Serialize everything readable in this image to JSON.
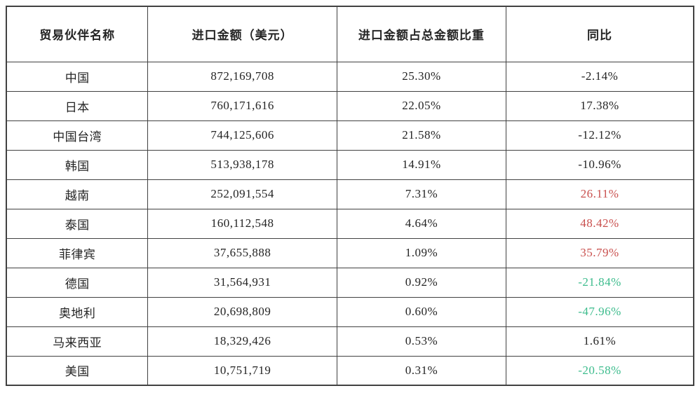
{
  "table": {
    "headers": [
      "贸易伙伴名称",
      "进口金额（美元）",
      "进口金额占总金额比重",
      "同比"
    ],
    "rows": [
      {
        "partner": "中国",
        "amount": "872,169,708",
        "share": "25.30%",
        "yoy": "-2.14%",
        "yoy_color": "default"
      },
      {
        "partner": "日本",
        "amount": "760,171,616",
        "share": "22.05%",
        "yoy": "17.38%",
        "yoy_color": "default"
      },
      {
        "partner": "中国台湾",
        "amount": "744,125,606",
        "share": "21.58%",
        "yoy": "-12.12%",
        "yoy_color": "default"
      },
      {
        "partner": "韩国",
        "amount": "513,938,178",
        "share": "14.91%",
        "yoy": "-10.96%",
        "yoy_color": "default"
      },
      {
        "partner": "越南",
        "amount": "252,091,554",
        "share": "7.31%",
        "yoy": "26.11%",
        "yoy_color": "red"
      },
      {
        "partner": "泰国",
        "amount": "160,112,548",
        "share": "4.64%",
        "yoy": "48.42%",
        "yoy_color": "red"
      },
      {
        "partner": "菲律宾",
        "amount": "37,655,888",
        "share": "1.09%",
        "yoy": "35.79%",
        "yoy_color": "red"
      },
      {
        "partner": "德国",
        "amount": "31,564,931",
        "share": "0.92%",
        "yoy": "-21.84%",
        "yoy_color": "green"
      },
      {
        "partner": "奥地利",
        "amount": "20,698,809",
        "share": "0.60%",
        "yoy": "-47.96%",
        "yoy_color": "green"
      },
      {
        "partner": "马来西亚",
        "amount": "18,329,426",
        "share": "0.53%",
        "yoy": "1.61%",
        "yoy_color": "default"
      },
      {
        "partner": "美国",
        "amount": "10,751,719",
        "share": "0.31%",
        "yoy": "-20.58%",
        "yoy_color": "green"
      }
    ]
  },
  "colors": {
    "default": "#242424",
    "red": "#c9504e",
    "green": "#3dbc8d",
    "border": "#414141"
  },
  "chart_data": {
    "type": "table",
    "title": "",
    "columns": [
      "贸易伙伴名称",
      "进口金额（美元）",
      "进口金额占总金额比重",
      "同比"
    ],
    "categories": [
      "中国",
      "日本",
      "中国台湾",
      "韩国",
      "越南",
      "泰国",
      "菲律宾",
      "德国",
      "奥地利",
      "马来西亚",
      "美国"
    ],
    "series": [
      {
        "name": "进口金额（美元）",
        "values": [
          872169708,
          760171616,
          744125606,
          513938178,
          252091554,
          160112548,
          37655888,
          31564931,
          20698809,
          18329426,
          10751719
        ]
      },
      {
        "name": "进口金额占总金额比重(%)",
        "values": [
          25.3,
          22.05,
          21.58,
          14.91,
          7.31,
          4.64,
          1.09,
          0.92,
          0.6,
          0.53,
          0.31
        ]
      },
      {
        "name": "同比(%)",
        "values": [
          -2.14,
          17.38,
          -12.12,
          -10.96,
          26.11,
          48.42,
          35.79,
          -21.84,
          -47.96,
          1.61,
          -20.58
        ]
      }
    ],
    "legend_position": "none",
    "grid": true
  }
}
